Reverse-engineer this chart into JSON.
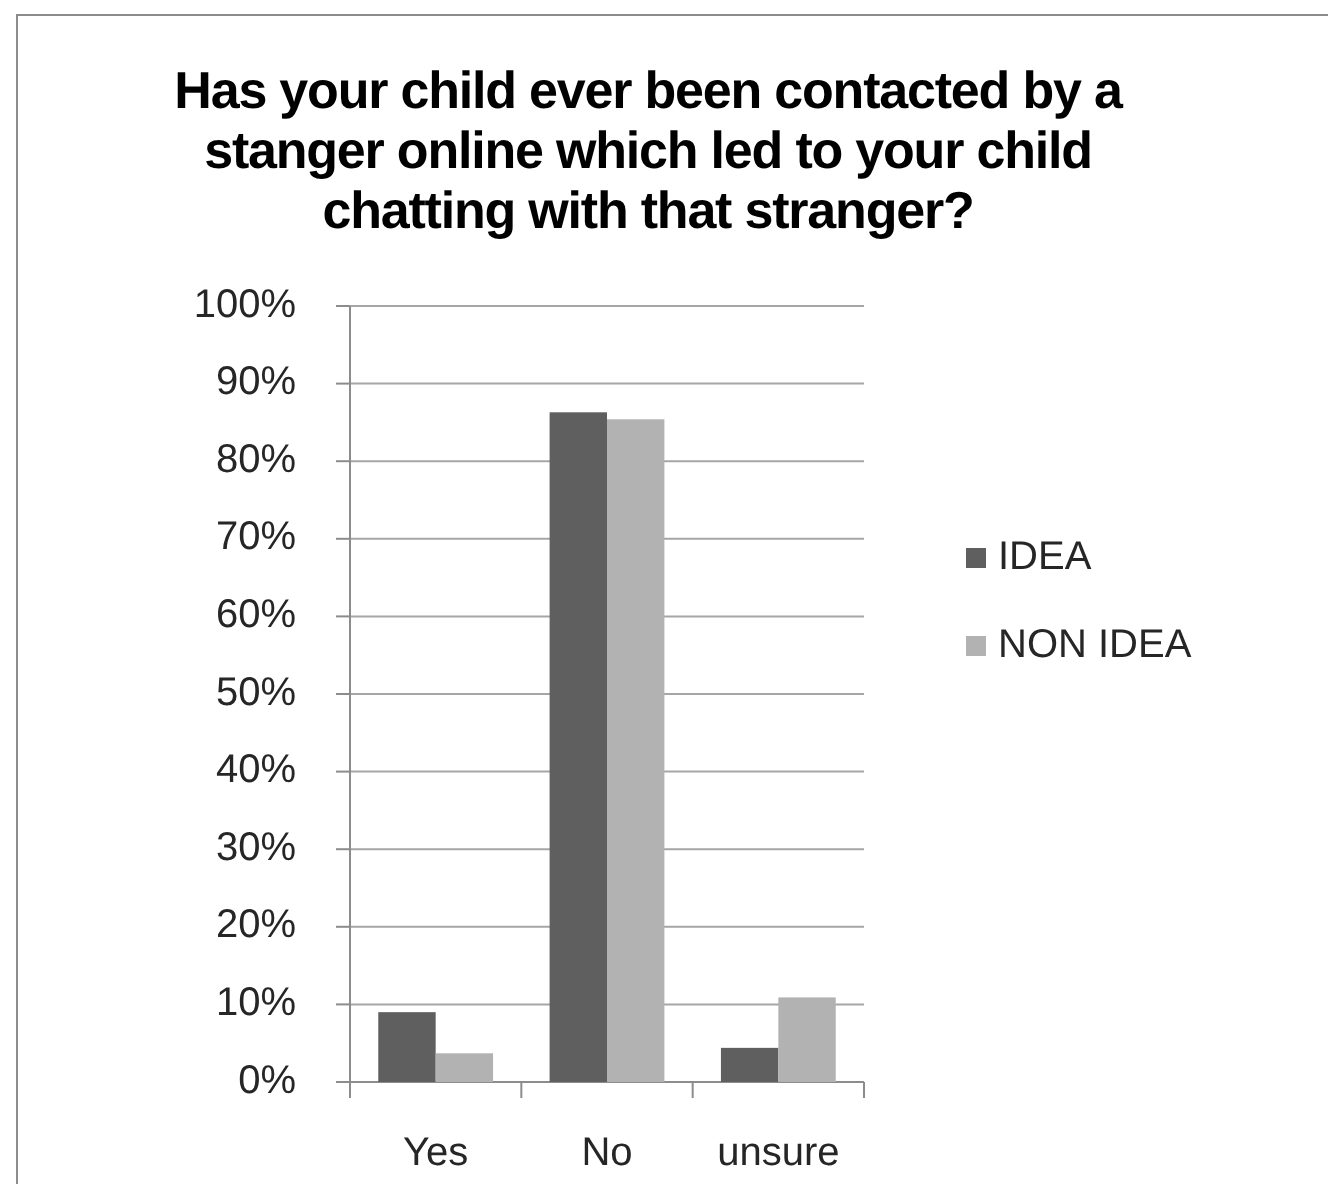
{
  "chart_data": {
    "type": "bar",
    "title": "Has your child ever been contacted by a stanger online which led to your child chatting with that stranger?",
    "categories": [
      "Yes",
      "No",
      "unsure"
    ],
    "series": [
      {
        "name": "IDEA",
        "color": "#5f5f5f",
        "values": [
          9,
          86.3,
          4.4
        ]
      },
      {
        "name": "NON IDEA",
        "color": "#b2b2b2",
        "values": [
          3.7,
          85.4,
          10.9
        ]
      }
    ],
    "ylim": [
      0,
      100
    ],
    "yticks": [
      {
        "value": 0,
        "label": "0%"
      },
      {
        "value": 10,
        "label": "10%"
      },
      {
        "value": 20,
        "label": "20%"
      },
      {
        "value": 30,
        "label": "30%"
      },
      {
        "value": 40,
        "label": "40%"
      },
      {
        "value": 50,
        "label": "50%"
      },
      {
        "value": 60,
        "label": "60%"
      },
      {
        "value": 70,
        "label": "70%"
      },
      {
        "value": 80,
        "label": "80%"
      },
      {
        "value": 90,
        "label": "90%"
      },
      {
        "value": 100,
        "label": "100%"
      }
    ],
    "grid": "y",
    "legend": "right"
  }
}
